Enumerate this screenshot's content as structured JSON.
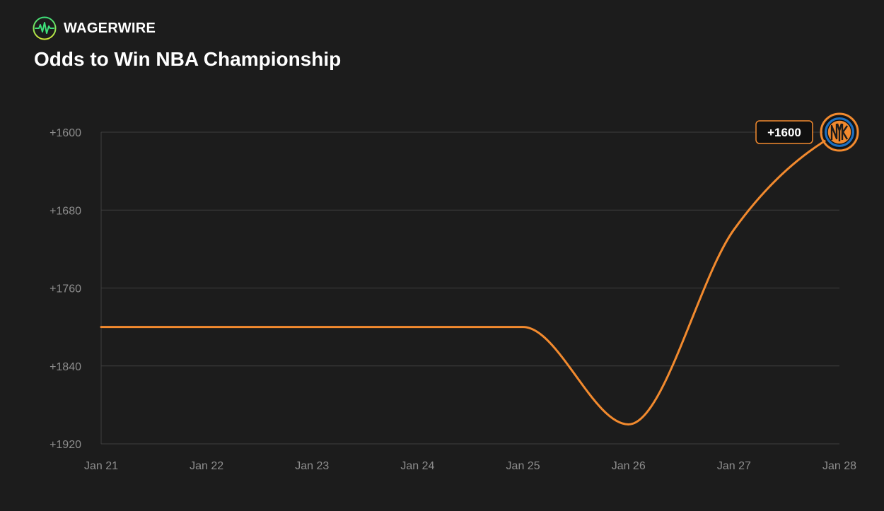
{
  "brand": {
    "name": "WAGERWIRE",
    "logo_icon": "heartbeat-pulse-icon"
  },
  "colors": {
    "background": "#1c1c1c",
    "grid": "#3e3e3e",
    "axis_text": "#8e8e8e",
    "series": "#f28a2e",
    "team_primary": "#1d6fbf",
    "team_secondary": "#f28a2e"
  },
  "chart_data": {
    "type": "line",
    "title": "Odds to Win NBA Championship",
    "xlabel": "",
    "ylabel": "",
    "x": [
      "Jan 21",
      "Jan 22",
      "Jan 23",
      "Jan 24",
      "Jan 25",
      "Jan 26",
      "Jan 27",
      "Jan 28"
    ],
    "y_ticks": [
      1600,
      1680,
      1760,
      1840,
      1920
    ],
    "y_tick_labels": [
      "+1600",
      "+1680",
      "+1760",
      "+1840",
      "+1920"
    ],
    "ylim": [
      1600,
      1920
    ],
    "y_axis_inverted": true,
    "grid": true,
    "legend": "none",
    "series": [
      {
        "values": [
          1800,
          1800,
          1800,
          1800,
          1800,
          1900,
          1700,
          1600
        ],
        "color": "#f28a2e",
        "end_label": "+1600",
        "end_marker_icon": "new-york-knicks-logo-icon"
      }
    ]
  }
}
